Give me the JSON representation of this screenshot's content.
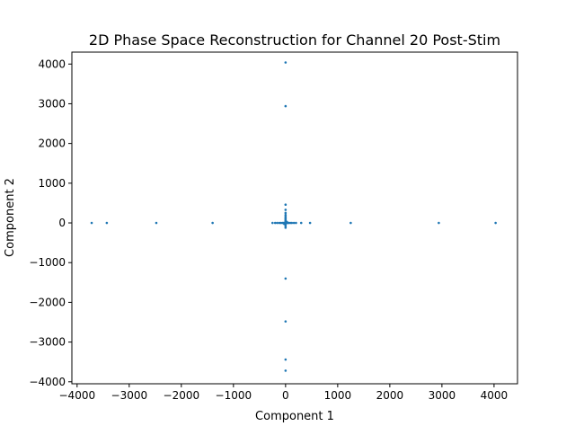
{
  "chart_data": {
    "type": "scatter",
    "title": "2D Phase Space Reconstruction for Channel 20 Post-Stim",
    "xlabel": "Component 1",
    "ylabel": "Component 2",
    "xlim": [
      -4100,
      4450
    ],
    "ylim": [
      -4050,
      4300
    ],
    "xticks": [
      -4000,
      -3000,
      -2000,
      -1000,
      0,
      1000,
      2000,
      3000,
      4000
    ],
    "yticks": [
      -4000,
      -3000,
      -2000,
      -1000,
      0,
      1000,
      2000,
      3000,
      4000
    ],
    "grid": false,
    "point_color": "#1f77b4",
    "series": [
      {
        "x": [
          0,
          0,
          0,
          0,
          0,
          0,
          0,
          0,
          0,
          0,
          0,
          0,
          0,
          0,
          0,
          0,
          0,
          0,
          0,
          0,
          -3720,
          -3430,
          -2480,
          -1400,
          -250,
          -200,
          -160,
          -120,
          -90,
          -60,
          -40,
          -20,
          20,
          40,
          60,
          90,
          120,
          160,
          200,
          300,
          470,
          1250,
          2940,
          4030,
          10,
          -10,
          15,
          -15,
          25,
          -25,
          5,
          -5,
          30,
          -30
        ],
        "y": [
          4040,
          2940,
          460,
          330,
          250,
          200,
          160,
          120,
          90,
          60,
          40,
          20,
          -20,
          -40,
          -80,
          -120,
          -1400,
          -2480,
          -3440,
          -3720,
          0,
          0,
          0,
          0,
          0,
          0,
          0,
          0,
          0,
          0,
          0,
          0,
          0,
          0,
          0,
          0,
          0,
          0,
          0,
          0,
          0,
          0,
          0,
          0,
          10,
          -10,
          15,
          -15,
          25,
          -25,
          35,
          -35,
          5,
          -5
        ]
      }
    ]
  }
}
